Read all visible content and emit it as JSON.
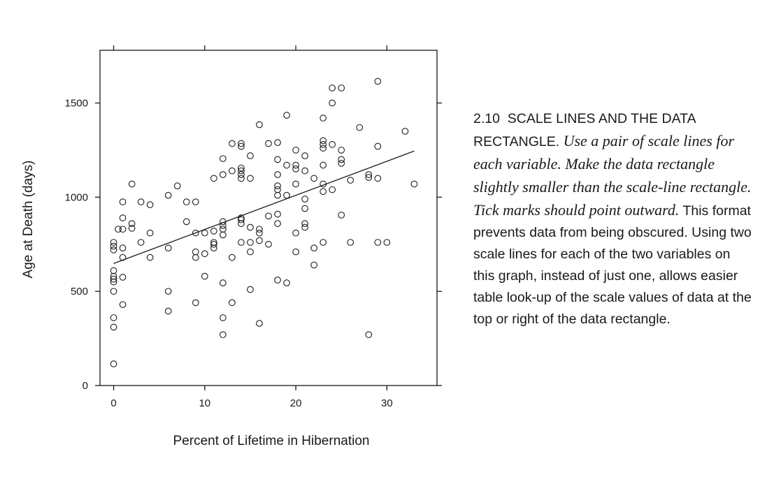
{
  "figure": {
    "number": "2.10",
    "heading": "SCALE LINES AND THE DATA RECTANGLE.",
    "italic_text": "Use a pair of scale lines for each variable. Make the data rectangle slightly smaller than the scale-line rectangle. Tick marks should point outward.",
    "body_text": "This format prevents data from being obscured. Using two scale lines for each of the two variables on this graph, instead of just one, allows easier table look-up of the scale values of data at the top or right of the data rectangle."
  },
  "chart_data": {
    "type": "scatter",
    "xlabel": "Percent of Lifetime in Hibernation",
    "ylabel": "Age at Death (days)",
    "xlim": [
      -1.5,
      35.5
    ],
    "ylim": [
      0,
      1780
    ],
    "x_ticks": [
      0,
      10,
      20,
      30
    ],
    "y_ticks": [
      0,
      500,
      1000,
      1500
    ],
    "grid": false,
    "regression_line": {
      "x": [
        0,
        33
      ],
      "y": [
        648,
        1245
      ]
    },
    "points": [
      [
        0,
        115
      ],
      [
        0,
        310
      ],
      [
        0,
        360
      ],
      [
        0,
        500
      ],
      [
        0,
        550
      ],
      [
        0,
        565
      ],
      [
        0,
        580
      ],
      [
        0,
        610
      ],
      [
        0,
        720
      ],
      [
        0,
        740
      ],
      [
        0,
        760
      ],
      [
        1,
        430
      ],
      [
        1,
        575
      ],
      [
        1,
        680
      ],
      [
        1,
        730
      ],
      [
        1,
        830
      ],
      [
        1,
        890
      ],
      [
        1,
        975
      ],
      [
        0.5,
        830
      ],
      [
        2,
        835
      ],
      [
        2,
        860
      ],
      [
        2,
        1070
      ],
      [
        3,
        760
      ],
      [
        3,
        975
      ],
      [
        4,
        680
      ],
      [
        4,
        810
      ],
      [
        4,
        960
      ],
      [
        6,
        395
      ],
      [
        6,
        500
      ],
      [
        6,
        730
      ],
      [
        6,
        1010
      ],
      [
        7,
        1060
      ],
      [
        8,
        870
      ],
      [
        8,
        975
      ],
      [
        9,
        440
      ],
      [
        9,
        680
      ],
      [
        9,
        710
      ],
      [
        9,
        810
      ],
      [
        9,
        975
      ],
      [
        10,
        580
      ],
      [
        10,
        700
      ],
      [
        10,
        810
      ],
      [
        11,
        730
      ],
      [
        11,
        750
      ],
      [
        11,
        760
      ],
      [
        11,
        820
      ],
      [
        11,
        1100
      ],
      [
        12,
        270
      ],
      [
        12,
        360
      ],
      [
        12,
        545
      ],
      [
        12,
        800
      ],
      [
        12,
        830
      ],
      [
        12,
        850
      ],
      [
        12,
        870
      ],
      [
        12,
        1120
      ],
      [
        12,
        1205
      ],
      [
        13,
        440
      ],
      [
        13,
        680
      ],
      [
        13,
        1140
      ],
      [
        13,
        1285
      ],
      [
        14,
        760
      ],
      [
        14,
        860
      ],
      [
        14,
        880
      ],
      [
        14,
        890
      ],
      [
        14,
        1100
      ],
      [
        14,
        1120
      ],
      [
        14,
        1140
      ],
      [
        14,
        1155
      ],
      [
        14,
        1270
      ],
      [
        14,
        1285
      ],
      [
        15,
        510
      ],
      [
        15,
        710
      ],
      [
        15,
        760
      ],
      [
        15,
        840
      ],
      [
        15,
        1100
      ],
      [
        15,
        1220
      ],
      [
        16,
        330
      ],
      [
        16,
        770
      ],
      [
        16,
        810
      ],
      [
        16,
        830
      ],
      [
        16,
        1385
      ],
      [
        17,
        750
      ],
      [
        17,
        900
      ],
      [
        17,
        1285
      ],
      [
        18,
        560
      ],
      [
        18,
        860
      ],
      [
        18,
        910
      ],
      [
        18,
        1010
      ],
      [
        18,
        1040
      ],
      [
        18,
        1060
      ],
      [
        18,
        1120
      ],
      [
        18,
        1200
      ],
      [
        18,
        1290
      ],
      [
        19,
        545
      ],
      [
        19,
        1010
      ],
      [
        19,
        1170
      ],
      [
        19,
        1435
      ],
      [
        20,
        710
      ],
      [
        20,
        810
      ],
      [
        20,
        1070
      ],
      [
        20,
        1150
      ],
      [
        20,
        1170
      ],
      [
        20,
        1250
      ],
      [
        21,
        840
      ],
      [
        21,
        860
      ],
      [
        21,
        940
      ],
      [
        21,
        990
      ],
      [
        21,
        1140
      ],
      [
        21,
        1220
      ],
      [
        22,
        640
      ],
      [
        22,
        730
      ],
      [
        22,
        1100
      ],
      [
        23,
        760
      ],
      [
        23,
        1030
      ],
      [
        23,
        1070
      ],
      [
        23,
        1170
      ],
      [
        23,
        1260
      ],
      [
        23,
        1280
      ],
      [
        23,
        1300
      ],
      [
        23,
        1420
      ],
      [
        24,
        1040
      ],
      [
        24,
        1280
      ],
      [
        24,
        1500
      ],
      [
        24,
        1580
      ],
      [
        25,
        905
      ],
      [
        25,
        1180
      ],
      [
        25,
        1200
      ],
      [
        25,
        1250
      ],
      [
        25,
        1580
      ],
      [
        26,
        760
      ],
      [
        26,
        1090
      ],
      [
        27,
        1370
      ],
      [
        28,
        270
      ],
      [
        28,
        1105
      ],
      [
        28,
        1120
      ],
      [
        29,
        760
      ],
      [
        29,
        1100
      ],
      [
        29,
        1270
      ],
      [
        29,
        1615
      ],
      [
        30,
        760
      ],
      [
        32,
        1350
      ],
      [
        33,
        1070
      ]
    ]
  }
}
